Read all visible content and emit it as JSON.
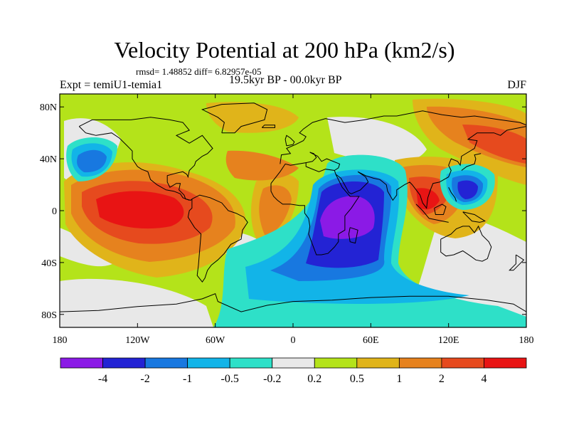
{
  "title": "Velocity Potential at 200 hPa (km2/s)",
  "stats": "rmsd= 1.48852 diff= 6.82957e-05",
  "experiment": "Expt = temiU1-temia1",
  "period": "19.5kyr BP - 00.0kyr BP",
  "season": "DJF",
  "lat_ticks": [
    {
      "lat": 80,
      "label": "80N"
    },
    {
      "lat": 40,
      "label": "40N"
    },
    {
      "lat": 0,
      "label": "0"
    },
    {
      "lat": -40,
      "label": "40S"
    },
    {
      "lat": -80,
      "label": "80S"
    }
  ],
  "lon_ticks": [
    {
      "lon": -180,
      "label": "180"
    },
    {
      "lon": -120,
      "label": "120W"
    },
    {
      "lon": -60,
      "label": "60W"
    },
    {
      "lon": 0,
      "label": "0"
    },
    {
      "lon": 60,
      "label": "60E"
    },
    {
      "lon": 120,
      "label": "120E"
    },
    {
      "lon": 180,
      "label": "180"
    }
  ],
  "colorbar": {
    "colors": [
      "#8b1ae6",
      "#2323d4",
      "#1878e0",
      "#12b4e8",
      "#2ee0c8",
      "#e8e8e8",
      "#b4e31a",
      "#e0b41a",
      "#e6821e",
      "#e64a1e",
      "#e81414"
    ],
    "labels": [
      "-4",
      "-2",
      "-1",
      "-0.5",
      "-0.2",
      "0.2",
      "0.5",
      "1",
      "2",
      "4"
    ]
  },
  "map_data": {
    "background_level": "0.2 to 0.5",
    "anomalies": [
      {
        "lon": 60,
        "lat": -5,
        "level": -4,
        "region": "Africa / Indian Ocean"
      },
      {
        "lon": 135,
        "lat": 15,
        "level": -2,
        "region": "Western Pacific"
      },
      {
        "lon": -150,
        "lat": 40,
        "level": -1,
        "region": "North Pacific"
      },
      {
        "lon": -120,
        "lat": 5,
        "level": 4,
        "region": "Eastern tropical Pacific"
      },
      {
        "lon": 105,
        "lat": 5,
        "level": 4,
        "region": "Maritime Continent"
      },
      {
        "lon": 95,
        "lat": 55,
        "level": 2,
        "region": "Siberia"
      },
      {
        "lon": -40,
        "lat": 40,
        "level": 1,
        "region": "North Atlantic"
      }
    ]
  }
}
